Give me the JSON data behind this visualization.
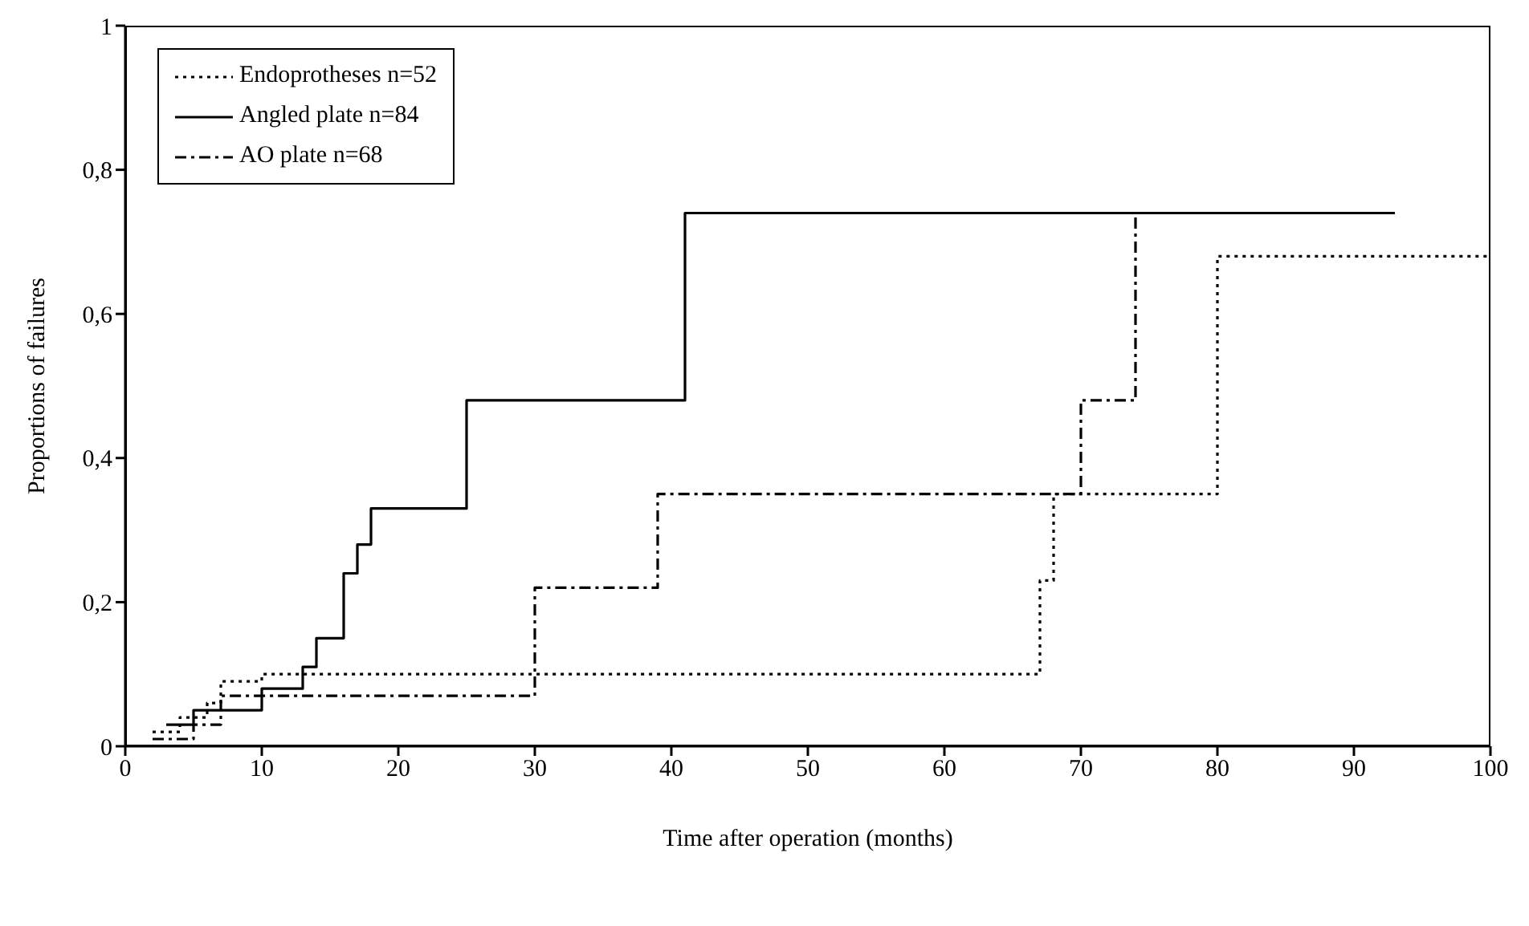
{
  "chart_data": {
    "type": "step",
    "xlabel": "Time after operation (months)",
    "ylabel": "Proportions of failures",
    "xlim": [
      0,
      100
    ],
    "xticks": [
      0,
      10,
      20,
      30,
      40,
      50,
      60,
      70,
      80,
      90,
      100
    ],
    "ylim": [
      0,
      1
    ],
    "yticks": [
      0,
      {
        "value": 0.2,
        "label": "0,2"
      },
      {
        "value": 0.4,
        "label": "0,4"
      },
      {
        "value": 0.6,
        "label": "0,6"
      },
      {
        "value": 0.8,
        "label": "0,8"
      },
      1
    ],
    "legend": "top left",
    "marker": "none",
    "series": [
      {
        "name": "Endoprotheses n=52",
        "color": "#000000",
        "line_style": "dotted",
        "x": [
          2,
          4,
          6,
          7,
          10,
          67,
          68,
          80,
          100
        ],
        "values": [
          0.02,
          0.04,
          0.06,
          0.09,
          0.1,
          0.23,
          0.35,
          0.68,
          0.68
        ]
      },
      {
        "name": "Angled plate n=84",
        "color": "#000000",
        "line_style": "solid",
        "x": [
          3,
          5,
          10,
          13,
          14,
          16,
          17,
          18,
          25,
          41,
          93
        ],
        "values": [
          0.03,
          0.05,
          0.08,
          0.11,
          0.15,
          0.24,
          0.28,
          0.33,
          0.48,
          0.74,
          0.74
        ]
      },
      {
        "name": "AO plate n=68",
        "color": "#000000",
        "line_style": "dashed",
        "x": [
          2,
          5,
          7,
          30,
          39,
          70,
          74,
          93
        ],
        "values": [
          0.01,
          0.03,
          0.07,
          0.22,
          0.35,
          0.48,
          0.74,
          0.74
        ]
      }
    ]
  }
}
